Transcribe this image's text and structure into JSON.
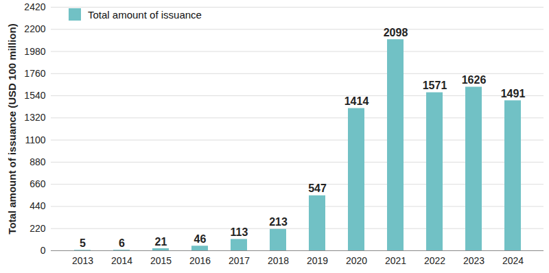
{
  "chart_data": {
    "type": "bar",
    "y_label": "Total amount of issuance (USD 100 million)",
    "categories": [
      "2013",
      "2014",
      "2015",
      "2016",
      "2017",
      "2018",
      "2019",
      "2020",
      "2021",
      "2022",
      "2023",
      "2024"
    ],
    "series": [
      {
        "name": "Total amount of issuance",
        "color": "#71c1c5",
        "values": [
          5,
          6,
          21,
          46,
          113,
          213,
          547,
          1414,
          2098,
          1571,
          1626,
          1491
        ]
      }
    ],
    "ylim": [
      0,
      2420
    ],
    "yticks": [
      0,
      220,
      440,
      660,
      880,
      1100,
      1320,
      1540,
      1760,
      1980,
      2200,
      2420
    ],
    "grid": true,
    "legend": "top-left",
    "data_labels": true
  }
}
